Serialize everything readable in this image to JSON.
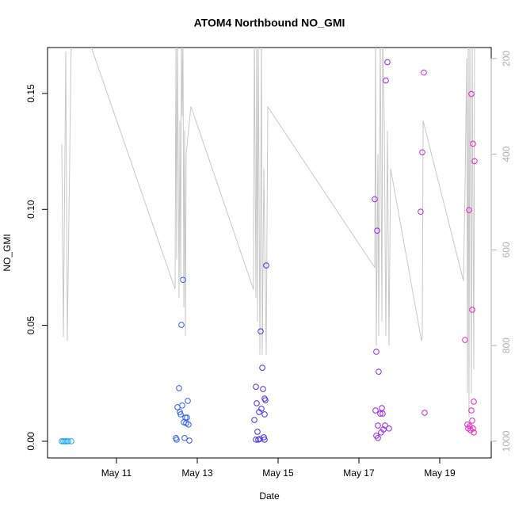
{
  "chart_data": {
    "type": "scatter",
    "title": "ATOM4 Northbound NO_GMI",
    "x_label": "Date",
    "y_label": "NO_GMI",
    "xlim": [
      9.294,
      20.275
    ],
    "ylim": [
      -0.0072,
      0.1698
    ],
    "y2lim": [
      1035,
      177
    ],
    "xticks": [
      {
        "value": 11,
        "label": "May 11"
      },
      {
        "value": 13,
        "label": "May 13"
      },
      {
        "value": 15,
        "label": "May 15"
      },
      {
        "value": 17,
        "label": "May 17"
      },
      {
        "value": 19,
        "label": "May 19"
      }
    ],
    "yticks": [
      {
        "value": 0,
        "label": "0.00"
      },
      {
        "value": 0.05,
        "label": "0.05"
      },
      {
        "value": 0.1,
        "label": "0.10"
      },
      0.15
    ],
    "y2ticks": [
      200,
      400,
      600,
      800,
      1000
    ],
    "series": [
      {
        "color": "#1ea6f0",
        "x": [
          9.647,
          9.686,
          9.725,
          9.765,
          9.804,
          9.882
        ],
        "values": [
          0,
          0,
          0,
          0,
          0,
          0
        ]
      },
      {
        "color": "#2f5df0",
        "x": [
          12.471,
          12.49,
          12.51,
          12.549,
          12.569,
          12.588,
          12.608,
          12.627,
          12.647,
          12.667,
          12.686,
          12.706,
          12.725,
          12.745,
          12.765,
          12.784,
          12.804
        ],
        "values": [
          0.0014,
          0.0007,
          0.0147,
          0.0229,
          0.0126,
          0.0116,
          0.0502,
          0.0154,
          0.0696,
          0.0082,
          0.0014,
          0.0102,
          0.0078,
          0.0102,
          0.0174,
          0.0072,
          0.0003
        ]
      },
      {
        "color": "#4a2df0",
        "x": [
          14.412,
          14.451,
          14.451,
          14.471,
          14.49,
          14.51,
          14.529,
          14.549,
          14.569,
          14.588,
          14.608,
          14.627,
          14.647,
          14.667,
          14.667,
          14.686,
          14.706,
          14.667
        ],
        "values": [
          0.0092,
          0.0235,
          0.0007,
          0.0164,
          0.0041,
          0.0007,
          0.0126,
          0.001,
          0.0474,
          0.014,
          0.0317,
          0.0225,
          0.0017,
          0.0184,
          0.0116,
          0.0177,
          0.0758,
          0.0007
        ]
      },
      {
        "color": "#9a22e8",
        "x": [
          17.392,
          17.431,
          17.451,
          17.412,
          17.431,
          17.471,
          17.49,
          17.471,
          17.529,
          17.549,
          17.569,
          17.588,
          17.608,
          17.647,
          17.667,
          17.706,
          17.745
        ],
        "values": [
          0.1044,
          0.0386,
          0.0908,
          0.0133,
          0.0024,
          0.0014,
          0.03,
          0.0068,
          0.0119,
          0.0038,
          0.0143,
          0.0119,
          0.0051,
          0.0068,
          0.1556,
          0.1635,
          0.0055
        ]
      },
      {
        "color": "#cc22d8",
        "x": [
          18.608,
          18.569,
          18.529,
          18.627
        ],
        "values": [
          0.159,
          0.1246,
          0.099,
          0.0123
        ]
      },
      {
        "color": "#ec22c8",
        "x": [
          19.627,
          19.686,
          19.706,
          19.725,
          19.745,
          19.765,
          19.784,
          19.784,
          19.804,
          19.804,
          19.824,
          19.824,
          19.843,
          19.843,
          19.863
        ],
        "values": [
          0.0437,
          0.0072,
          0.0055,
          0.0997,
          0.0065,
          0.0048,
          0.1498,
          0.0133,
          0.0089,
          0.0567,
          0.1283,
          0.0055,
          0.0038,
          0.0171,
          0.1208
        ]
      },
      {
        "type": "line",
        "axis": "y2",
        "color": "#c8c8c8",
        "x": [
          9.647,
          9.686,
          9.745,
          9.784,
          9.882,
          10.35,
          12.451,
          12.471,
          12.49,
          12.51,
          12.549,
          12.569,
          12.588,
          12.608,
          12.627,
          12.647,
          12.667,
          12.686,
          12.706,
          12.725,
          12.843,
          14.392,
          14.412,
          14.451,
          14.471,
          14.49,
          14.51,
          14.549,
          14.588,
          14.608,
          14.647,
          14.706,
          14.745,
          17.392,
          17.412,
          17.431,
          17.471,
          17.49,
          17.529,
          17.549,
          17.569,
          17.588,
          17.627,
          17.667,
          17.706,
          17.745,
          17.784,
          18.549,
          18.569,
          18.588,
          19.588,
          19.627,
          19.667,
          19.686,
          19.706,
          19.725,
          19.745,
          19.784,
          19.804,
          19.843,
          19.863
        ],
        "values": [
          379,
          782,
          185,
          790,
          150,
          170,
          682,
          150,
          620,
          150,
          700,
          330,
          660,
          150,
          320,
          150,
          720,
          350,
          780,
          400,
          300,
          683,
          150,
          700,
          150,
          750,
          150,
          820,
          150,
          820,
          430,
          820,
          301,
          637,
          150,
          800,
          400,
          780,
          150,
          430,
          750,
          150,
          330,
          780,
          350,
          800,
          430,
          790,
          780,
          330,
          665,
          470,
          200,
          900,
          150,
          950,
          150,
          900,
          150,
          850,
          150
        ]
      }
    ]
  }
}
